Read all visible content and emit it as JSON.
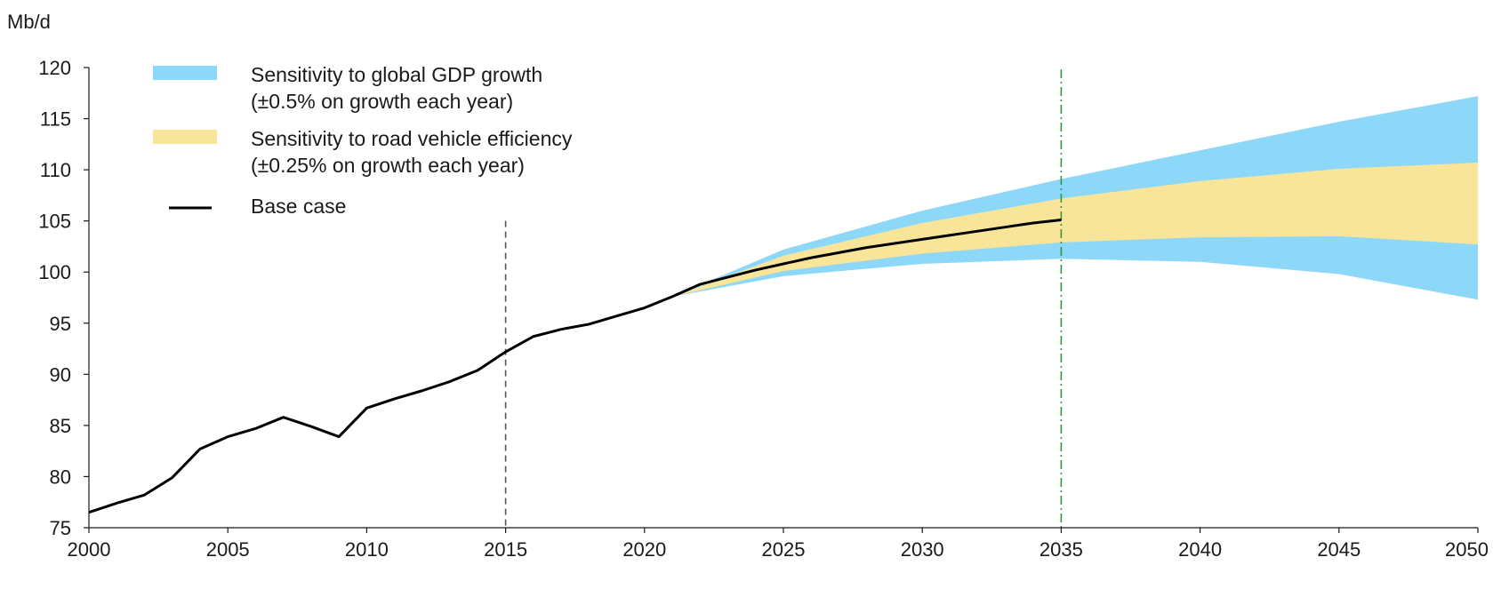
{
  "chart_data": {
    "type": "line",
    "ylabel": "Mb/d",
    "xlim": [
      2000,
      2050
    ],
    "ylim": [
      75,
      120
    ],
    "x_ticks": [
      "2000",
      "2005",
      "2010",
      "2015",
      "2020",
      "2025",
      "2030",
      "2035",
      "2040",
      "2045",
      "2050"
    ],
    "y_ticks": [
      "75",
      "80",
      "85",
      "90",
      "95",
      "100",
      "105",
      "110",
      "115",
      "120"
    ],
    "reference_lines": [
      {
        "x": 2015,
        "style": "dashed",
        "color": "#555555"
      },
      {
        "x": 2035,
        "style": "dash-dot",
        "color": "#22a030"
      }
    ],
    "legend": {
      "placement": "top-left",
      "entries": [
        {
          "key": "gdp",
          "line1": "Sensitivity to global GDP growth",
          "line2": "(±0.5% on growth each year)",
          "color": "#8dd8f8"
        },
        {
          "key": "road",
          "line1": "Sensitivity to road vehicle efficiency",
          "line2": "(±0.25% on growth each year)",
          "color": "#f8e59a"
        },
        {
          "key": "base",
          "line1": "Base case",
          "line2": "",
          "color": "#000000"
        }
      ]
    },
    "series": [
      {
        "key": "base",
        "kind": "line",
        "color": "#000000",
        "x": [
          2000,
          2001,
          2002,
          2003,
          2004,
          2005,
          2006,
          2007,
          2008,
          2009,
          2010,
          2011,
          2012,
          2013,
          2014,
          2015,
          2016,
          2017,
          2018,
          2019,
          2020,
          2021,
          2022,
          2023,
          2024,
          2025,
          2026,
          2027,
          2028,
          2029,
          2030,
          2031,
          2032,
          2033,
          2034,
          2035
        ],
        "y": [
          76.5,
          77.4,
          78.2,
          79.9,
          82.7,
          83.9,
          84.7,
          85.8,
          84.9,
          83.9,
          86.7,
          87.6,
          88.4,
          89.3,
          90.4,
          92.2,
          93.7,
          94.4,
          94.9,
          95.7,
          96.5,
          97.6,
          98.8,
          99.5,
          100.2,
          100.8,
          101.4,
          101.9,
          102.4,
          102.8,
          103.2,
          103.6,
          104.0,
          104.4,
          104.8,
          105.1
        ]
      },
      {
        "key": "gdp",
        "kind": "band",
        "color": "#8dd8f8",
        "x": [
          2021,
          2025,
          2030,
          2035,
          2040,
          2045,
          2050
        ],
        "upper": [
          97.6,
          102.2,
          106.0,
          109.1,
          111.9,
          114.7,
          117.2
        ],
        "lower": [
          97.6,
          99.6,
          100.8,
          101.3,
          101.0,
          99.8,
          97.3
        ]
      },
      {
        "key": "road",
        "kind": "band",
        "color": "#f8e59a",
        "x": [
          2021,
          2025,
          2030,
          2035,
          2040,
          2045,
          2050
        ],
        "upper": [
          97.6,
          101.6,
          104.8,
          107.2,
          108.9,
          110.1,
          110.7
        ],
        "lower": [
          97.6,
          100.1,
          101.8,
          102.9,
          103.4,
          103.5,
          102.7
        ]
      }
    ]
  }
}
